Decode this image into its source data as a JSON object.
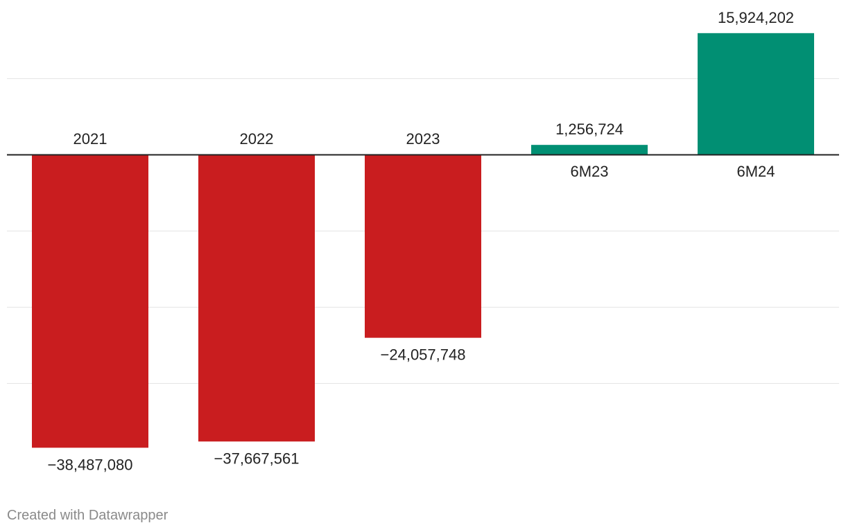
{
  "chart_data": {
    "type": "bar",
    "title": "",
    "xlabel": "",
    "ylabel": "",
    "categories": [
      "2021",
      "2022",
      "2023",
      "6M23",
      "6M24"
    ],
    "values": [
      -38487080,
      -37667561,
      -24057748,
      1256724,
      15924202
    ],
    "value_labels": [
      "−38,487,080",
      "−37,667,561",
      "−24,057,748",
      "1,256,724",
      "15,924,202"
    ],
    "ylim": [
      -40000000,
      20000000
    ],
    "gridlines": [
      10000000,
      -10000000,
      -20000000,
      -30000000
    ],
    "grid": true,
    "legend": "none",
    "colors": {
      "negative": "#c91d1f",
      "positive": "#018f73",
      "grid": "#e5e5e5",
      "baseline": "#222222",
      "label": "#222222"
    }
  },
  "footer": {
    "credit": "Created with Datawrapper"
  }
}
